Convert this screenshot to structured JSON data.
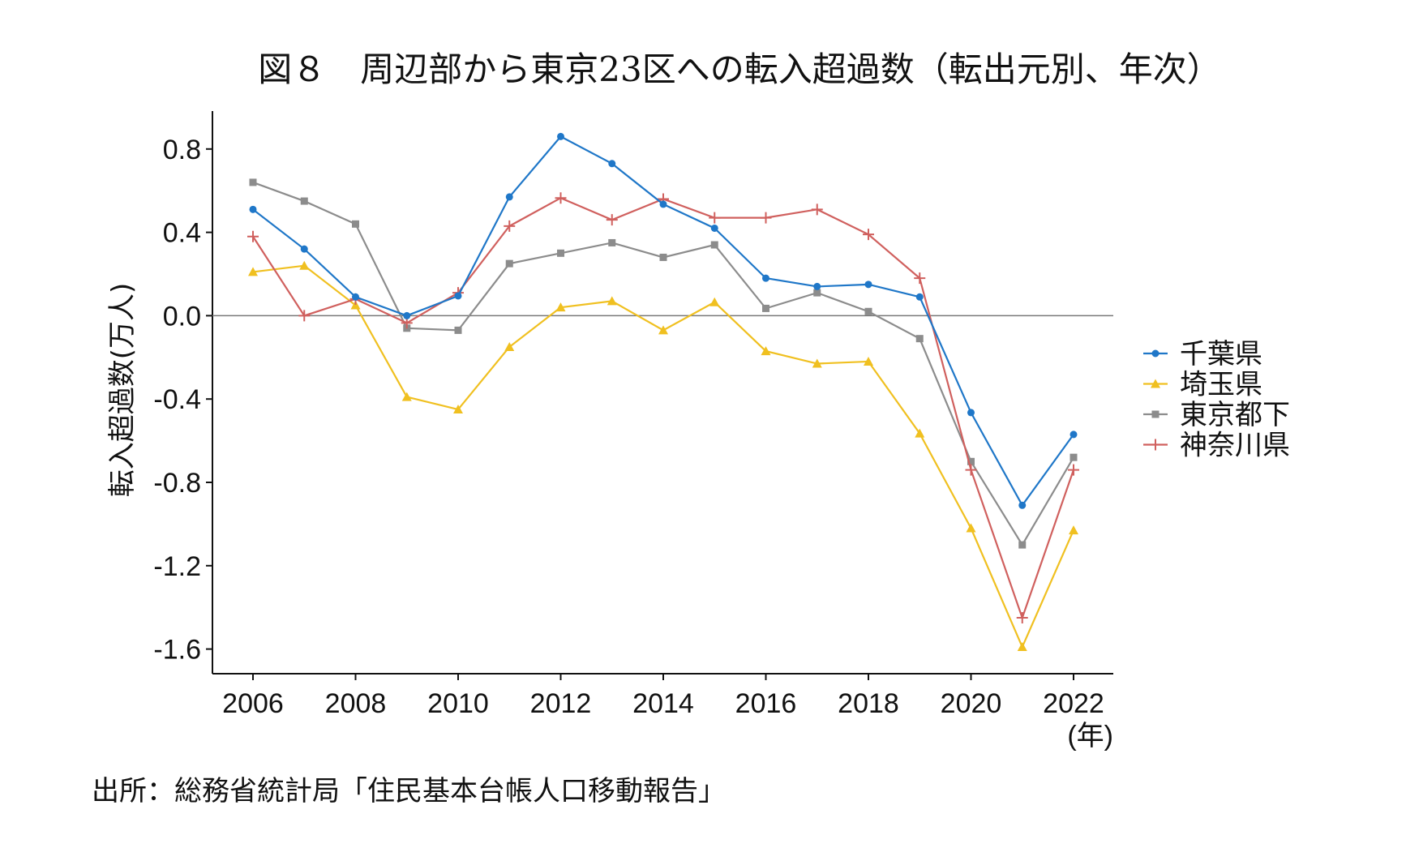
{
  "chart_data": {
    "type": "line",
    "title": "図８　周辺部から東京23区への転入超過数（転出元別、年次）",
    "ylabel": "転入超過数(万人)",
    "xlabel": "(年)",
    "source": "出所：総務省統計局「住民基本台帳人口移動報告」",
    "x": [
      2006,
      2007,
      2008,
      2009,
      2010,
      2011,
      2012,
      2013,
      2014,
      2015,
      2016,
      2017,
      2018,
      2019,
      2020,
      2021,
      2022
    ],
    "xticks": [
      "2006",
      "2008",
      "2010",
      "2012",
      "2014",
      "2016",
      "2018",
      "2020",
      "2022"
    ],
    "yticks": [
      "0.8",
      "0.4",
      "0.0",
      "-0.4",
      "-0.8",
      "-1.2",
      "-1.6"
    ],
    "ylim": [
      -1.73,
      0.98
    ],
    "grid": false,
    "reference_line_y": 0,
    "legend_position": "right",
    "series": [
      {
        "name": "千葉県",
        "color": "#1f77c8",
        "marker": "circle",
        "values": [
          0.51,
          0.32,
          0.09,
          0.0,
          0.095,
          0.57,
          0.86,
          0.73,
          0.535,
          0.42,
          0.18,
          0.14,
          0.15,
          0.09,
          -0.465,
          -0.91,
          -0.57
        ]
      },
      {
        "name": "埼玉県",
        "color": "#f0c020",
        "marker": "triangle",
        "values": [
          0.21,
          0.24,
          0.05,
          -0.39,
          -0.45,
          -0.15,
          0.04,
          0.07,
          -0.07,
          0.065,
          -0.17,
          -0.23,
          -0.22,
          -0.565,
          -1.02,
          -1.59,
          -1.03
        ]
      },
      {
        "name": "東京都下",
        "color": "#8c8c8c",
        "marker": "square",
        "values": [
          0.64,
          0.55,
          0.44,
          -0.06,
          -0.07,
          0.25,
          0.3,
          0.35,
          0.28,
          0.34,
          0.035,
          0.11,
          0.02,
          -0.11,
          -0.7,
          -1.1,
          -0.68
        ]
      },
      {
        "name": "神奈川県",
        "color": "#d0605e",
        "marker": "plus",
        "values": [
          0.38,
          0.0,
          0.08,
          -0.035,
          0.11,
          0.43,
          0.565,
          0.46,
          0.56,
          0.47,
          0.47,
          0.51,
          0.39,
          0.18,
          -0.74,
          -1.45,
          -0.74
        ]
      }
    ]
  }
}
